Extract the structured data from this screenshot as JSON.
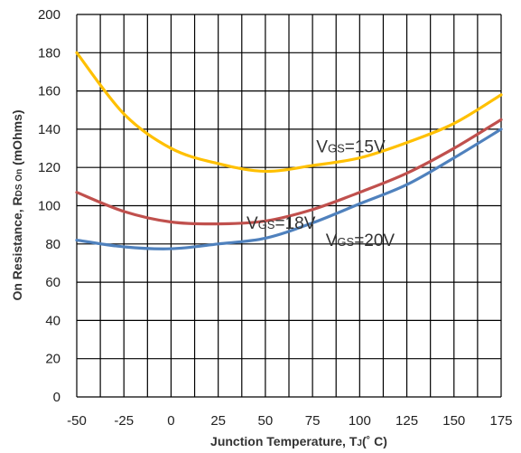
{
  "chart_data": {
    "type": "line",
    "title": "",
    "xlabel": "Junction Temperature, T",
    "xlabel_sub": "J",
    "xlabel_tail": "(˚ C)",
    "ylabel": "On Resistance, R",
    "ylabel_sub": "DS On",
    "ylabel_tail": " (mOhms)",
    "xlim": [
      -50,
      175
    ],
    "ylim": [
      0,
      200
    ],
    "x_ticks": [
      -50,
      -25,
      0,
      25,
      50,
      75,
      100,
      125,
      150,
      175
    ],
    "y_ticks": [
      0,
      20,
      40,
      60,
      80,
      100,
      120,
      140,
      160,
      180,
      200
    ],
    "grid": true,
    "x": [
      -50,
      -25,
      0,
      25,
      50,
      75,
      100,
      125,
      150,
      175
    ],
    "series": [
      {
        "label_main": "V",
        "label_sub": "GS",
        "label_tail": "=15V",
        "color": "#FFC000",
        "values": [
          180,
          148,
          130,
          122,
          118,
          121,
          125,
          133,
          143,
          158
        ],
        "label_at": [
          77,
          128
        ]
      },
      {
        "label_main": "V",
        "label_sub": "GS",
        "label_tail": "=18V",
        "color": "#C0504D",
        "values": [
          107,
          97,
          91.5,
          90.5,
          92,
          98,
          107,
          117,
          130,
          145
        ],
        "label_at": [
          40,
          88
        ]
      },
      {
        "label_main": "V",
        "label_sub": "GS",
        "label_tail": "=20V",
        "color": "#4F81BD",
        "values": [
          82,
          78.5,
          77.5,
          80,
          83,
          91,
          101,
          111,
          125,
          140
        ],
        "label_at": [
          82,
          79
        ]
      }
    ]
  }
}
